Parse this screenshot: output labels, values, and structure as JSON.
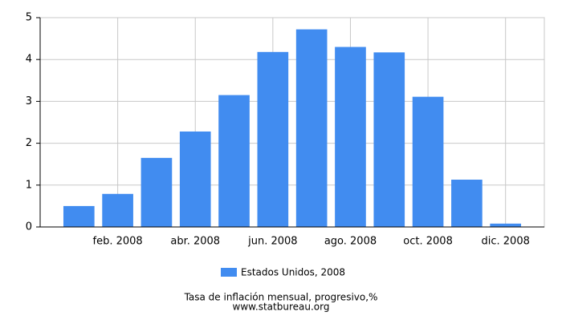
{
  "chart_data": {
    "type": "bar",
    "title": "Tasa de inflación mensual, progresivo,%",
    "source": "www.statbureau.org",
    "categories": [
      null,
      "feb. 2008",
      null,
      "abr. 2008",
      null,
      "jun. 2008",
      null,
      "ago. 2008",
      null,
      "oct. 2008",
      null,
      "dic. 2008"
    ],
    "series": [
      {
        "name": "Estados Unidos, 2008",
        "color": "#418cf0",
        "values": [
          0.5,
          0.79,
          1.65,
          2.28,
          3.15,
          4.18,
          4.72,
          4.3,
          4.17,
          3.11,
          1.13,
          0.08
        ]
      }
    ],
    "ylim": [
      0,
      5
    ],
    "yticks": [
      0,
      1,
      2,
      3,
      4,
      5
    ],
    "grid": true
  }
}
